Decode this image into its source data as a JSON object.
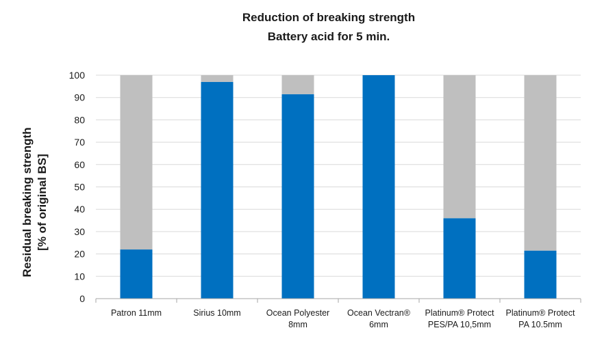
{
  "chart_data": {
    "type": "bar",
    "stacked": true,
    "title": "Reduction of breaking strength",
    "subtitle": "Battery acid for 5 min.",
    "ylabel": [
      "Residual breaking strength",
      "[% of original BS]"
    ],
    "xlabel": "",
    "ylim": [
      0,
      100
    ],
    "yticks": [
      0,
      10,
      20,
      30,
      40,
      50,
      60,
      70,
      80,
      90,
      100
    ],
    "grid": true,
    "legend": "none",
    "categories": [
      [
        "Patron 11mm"
      ],
      [
        "Sirius 10mm"
      ],
      [
        "Ocean Polyester",
        "8mm"
      ],
      [
        "Ocean Vectran®",
        "6mm"
      ],
      [
        "Platinum® Protect",
        "PES/PA 10,5mm"
      ],
      [
        "Platinum® Protect",
        "PA 10.5mm"
      ]
    ],
    "series": [
      {
        "values": [
          22,
          97,
          91.5,
          100,
          36,
          21.5
        ],
        "color": "#0070C0"
      },
      {
        "values": [
          78,
          3,
          8.5,
          0,
          64,
          78.5
        ],
        "color": "#BFBFBF"
      }
    ]
  }
}
